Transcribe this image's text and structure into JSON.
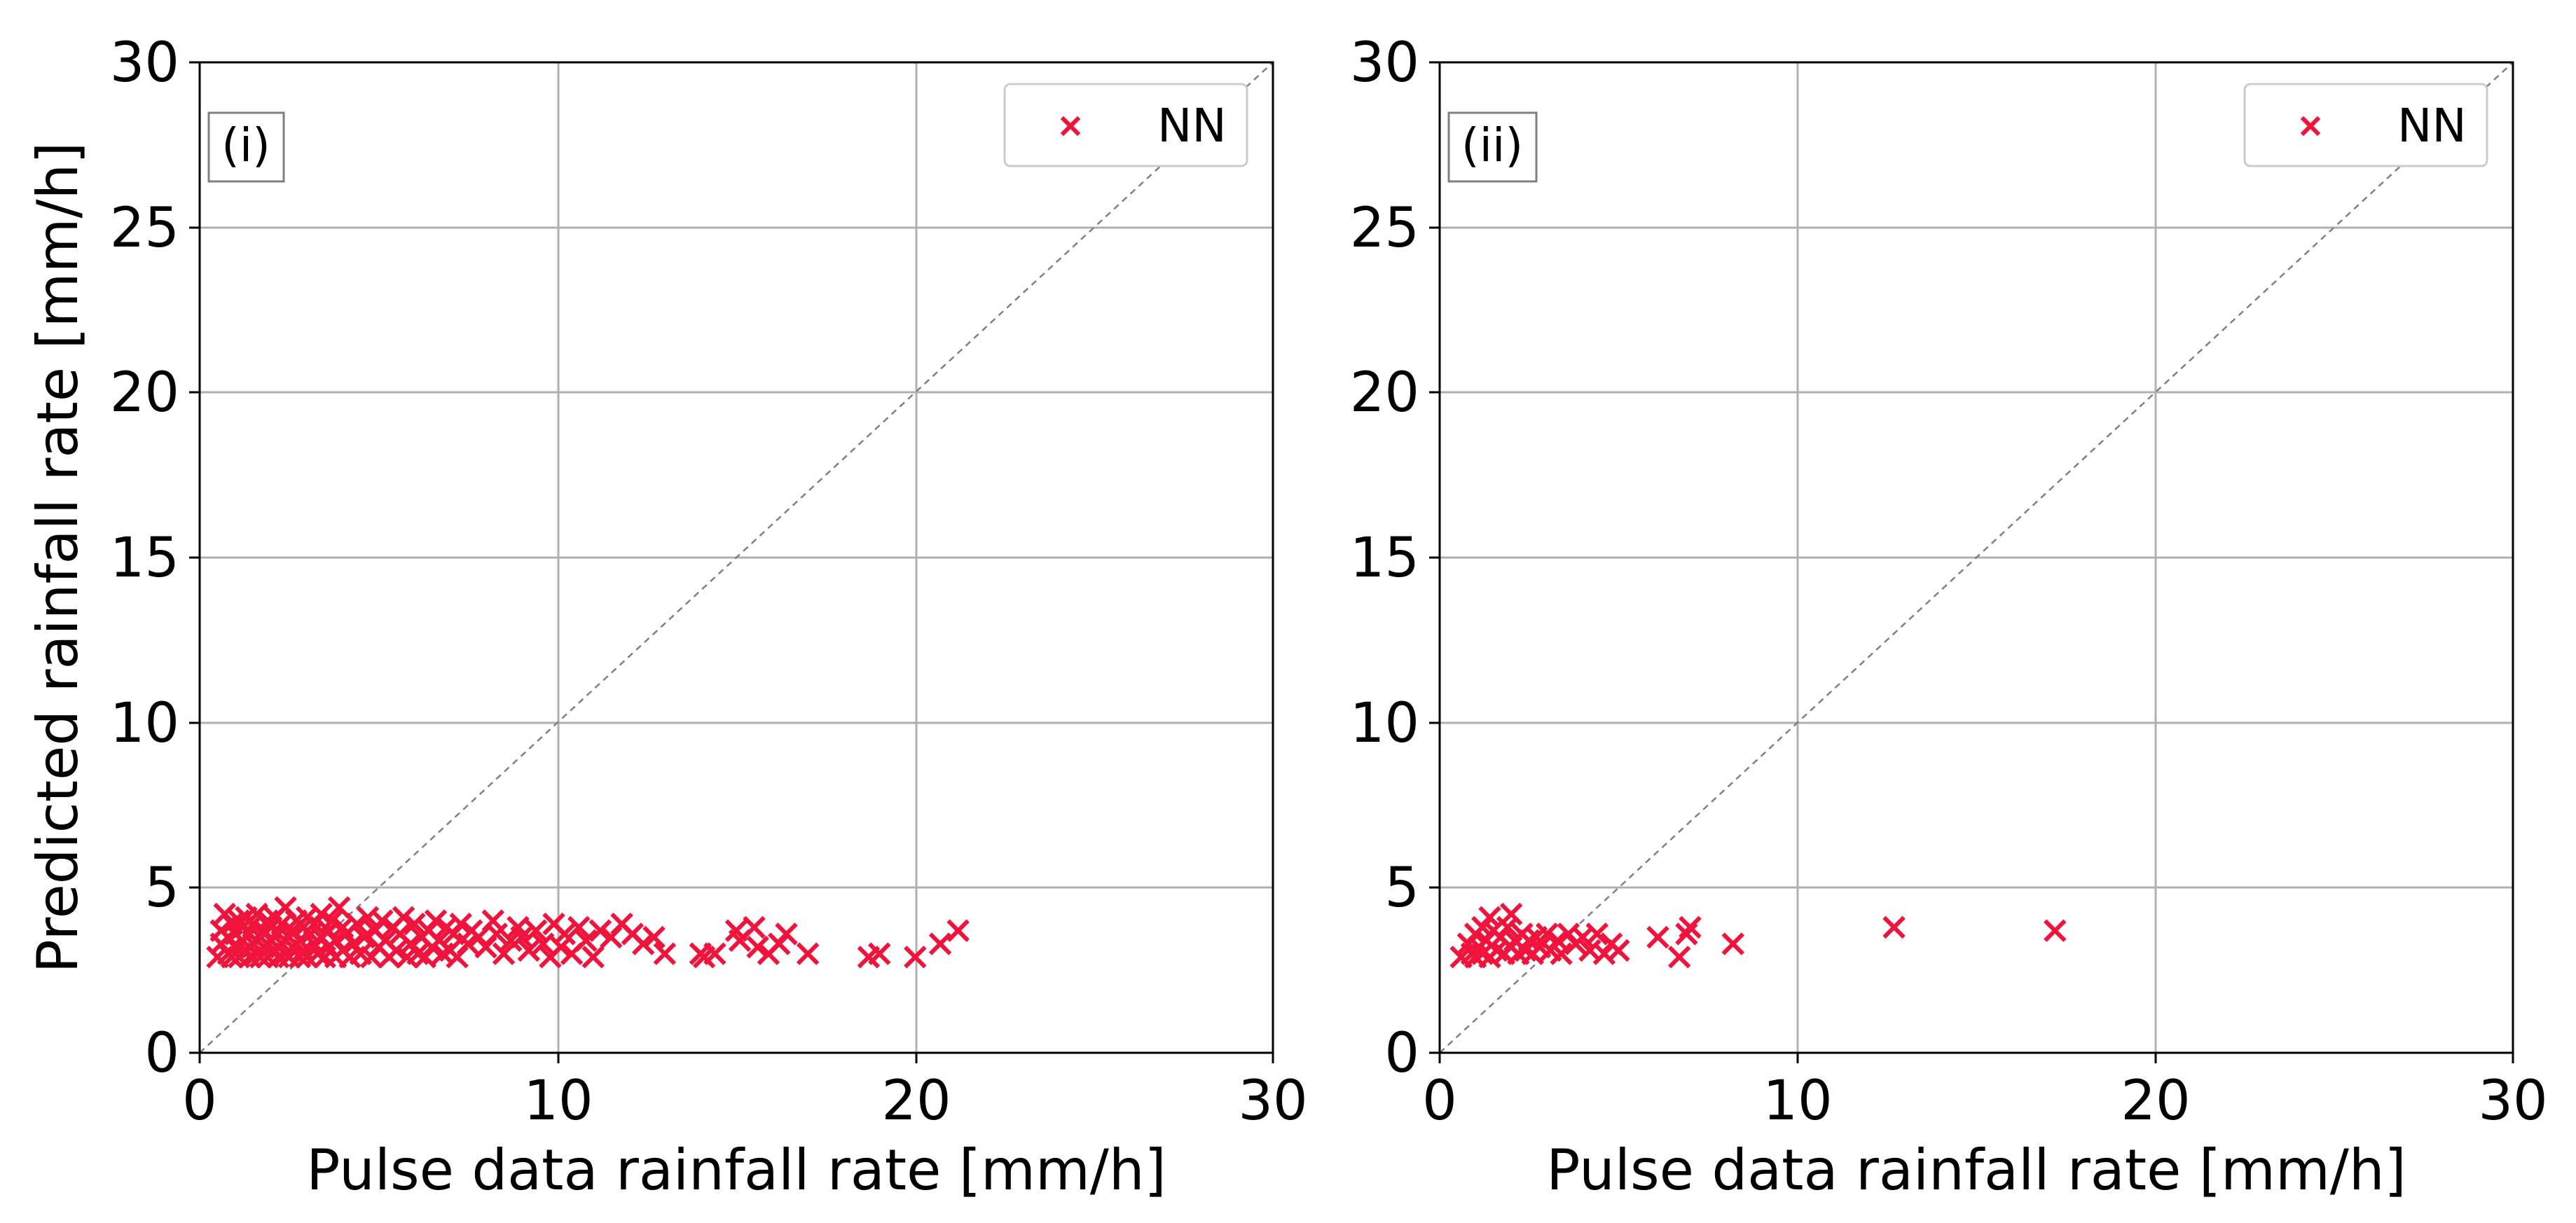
{
  "chart_data": [
    {
      "type": "scatter",
      "panel_label": "(i)",
      "xlabel": "Pulse data rainfall rate [mm/h]",
      "ylabel": "Predicted rainfall rate [mm/h]",
      "xlim": [
        0,
        30
      ],
      "ylim": [
        0,
        30
      ],
      "xticks": [
        "0",
        "10",
        "20",
        "30"
      ],
      "yticks": [
        "0",
        "5",
        "10",
        "15",
        "20",
        "25",
        "30"
      ],
      "grid": true,
      "identity_line": true,
      "legend": {
        "position": "top-right",
        "entries": [
          "NN"
        ]
      },
      "series": [
        {
          "name": "NN",
          "marker": "x",
          "color": "#f0143c",
          "points": [
            [
              0.5,
              2.9
            ],
            [
              0.6,
              3.3
            ],
            [
              0.6,
              3.7
            ],
            [
              0.7,
              4.2
            ],
            [
              0.8,
              3.0
            ],
            [
              0.8,
              3.5
            ],
            [
              0.9,
              2.9
            ],
            [
              0.9,
              3.9
            ],
            [
              1.0,
              3.2
            ],
            [
              1.0,
              3.6
            ],
            [
              1.1,
              4.0
            ],
            [
              1.1,
              2.9
            ],
            [
              1.2,
              3.4
            ],
            [
              1.2,
              3.8
            ],
            [
              1.3,
              3.1
            ],
            [
              1.3,
              4.1
            ],
            [
              1.4,
              2.9
            ],
            [
              1.4,
              3.6
            ],
            [
              1.5,
              3.3
            ],
            [
              1.5,
              3.9
            ],
            [
              1.6,
              3.0
            ],
            [
              1.6,
              4.2
            ],
            [
              1.7,
              3.5
            ],
            [
              1.7,
              2.9
            ],
            [
              1.8,
              3.7
            ],
            [
              1.8,
              3.2
            ],
            [
              1.9,
              4.0
            ],
            [
              1.9,
              2.9
            ],
            [
              2.0,
              3.4
            ],
            [
              2.0,
              3.8
            ],
            [
              2.1,
              3.1
            ],
            [
              2.1,
              4.1
            ],
            [
              2.2,
              2.9
            ],
            [
              2.2,
              3.6
            ],
            [
              2.3,
              3.3
            ],
            [
              2.3,
              3.9
            ],
            [
              2.4,
              3.0
            ],
            [
              2.4,
              4.4
            ],
            [
              2.5,
              3.5
            ],
            [
              2.5,
              2.9
            ],
            [
              2.6,
              3.7
            ],
            [
              2.6,
              3.2
            ],
            [
              2.7,
              4.0
            ],
            [
              2.8,
              2.9
            ],
            [
              2.8,
              3.4
            ],
            [
              2.9,
              3.8
            ],
            [
              2.9,
              3.1
            ],
            [
              3.0,
              4.1
            ],
            [
              3.0,
              2.9
            ],
            [
              3.1,
              3.6
            ],
            [
              3.2,
              3.3
            ],
            [
              3.2,
              3.9
            ],
            [
              3.3,
              3.0
            ],
            [
              3.4,
              4.2
            ],
            [
              3.4,
              3.5
            ],
            [
              3.5,
              2.9
            ],
            [
              3.6,
              3.7
            ],
            [
              3.6,
              3.2
            ],
            [
              3.7,
              4.0
            ],
            [
              3.8,
              3.4
            ],
            [
              3.8,
              2.9
            ],
            [
              3.9,
              4.4
            ],
            [
              4.0,
              3.1
            ],
            [
              4.0,
              3.8
            ],
            [
              4.1,
              3.6
            ],
            [
              4.2,
              2.9
            ],
            [
              4.3,
              3.3
            ],
            [
              4.4,
              3.9
            ],
            [
              4.5,
              3.0
            ],
            [
              4.6,
              3.5
            ],
            [
              4.7,
              4.1
            ],
            [
              4.8,
              2.9
            ],
            [
              4.9,
              3.7
            ],
            [
              5.0,
              3.2
            ],
            [
              5.1,
              4.0
            ],
            [
              5.2,
              3.4
            ],
            [
              5.3,
              2.9
            ],
            [
              5.4,
              3.8
            ],
            [
              5.5,
              3.1
            ],
            [
              5.6,
              3.6
            ],
            [
              5.7,
              4.1
            ],
            [
              5.8,
              2.9
            ],
            [
              5.9,
              3.3
            ],
            [
              6.0,
              3.9
            ],
            [
              6.1,
              3.0
            ],
            [
              6.2,
              3.5
            ],
            [
              6.3,
              2.9
            ],
            [
              6.4,
              3.7
            ],
            [
              6.5,
              3.2
            ],
            [
              6.6,
              4.0
            ],
            [
              6.7,
              3.4
            ],
            [
              6.8,
              3.0
            ],
            [
              6.9,
              3.8
            ],
            [
              7.0,
              3.1
            ],
            [
              7.1,
              3.6
            ],
            [
              7.2,
              2.9
            ],
            [
              7.3,
              3.9
            ],
            [
              7.5,
              3.3
            ],
            [
              7.6,
              3.7
            ],
            [
              7.8,
              3.5
            ],
            [
              8.0,
              3.2
            ],
            [
              8.2,
              4.0
            ],
            [
              8.3,
              3.6
            ],
            [
              8.5,
              3.0
            ],
            [
              8.7,
              3.4
            ],
            [
              8.9,
              3.8
            ],
            [
              9.0,
              3.5
            ],
            [
              9.2,
              3.1
            ],
            [
              9.4,
              3.7
            ],
            [
              9.6,
              3.3
            ],
            [
              9.8,
              2.9
            ],
            [
              9.9,
              3.9
            ],
            [
              10.1,
              3.2
            ],
            [
              10.2,
              3.6
            ],
            [
              10.4,
              3.0
            ],
            [
              10.6,
              3.8
            ],
            [
              10.8,
              3.4
            ],
            [
              11.0,
              2.9
            ],
            [
              11.2,
              3.7
            ],
            [
              11.5,
              3.5
            ],
            [
              11.8,
              3.9
            ],
            [
              12.1,
              3.6
            ],
            [
              12.4,
              3.3
            ],
            [
              12.7,
              3.5
            ],
            [
              13.0,
              3.0
            ],
            [
              14.0,
              3.0
            ],
            [
              14.1,
              2.9
            ],
            [
              14.4,
              3.0
            ],
            [
              15.0,
              3.7
            ],
            [
              15.1,
              3.4
            ],
            [
              15.5,
              3.8
            ],
            [
              15.6,
              3.2
            ],
            [
              15.9,
              3.0
            ],
            [
              16.2,
              3.3
            ],
            [
              16.4,
              3.6
            ],
            [
              17.0,
              3.0
            ],
            [
              18.7,
              2.9
            ],
            [
              19.0,
              3.0
            ],
            [
              20.0,
              2.9
            ],
            [
              20.7,
              3.3
            ],
            [
              21.2,
              3.7
            ]
          ]
        }
      ]
    },
    {
      "type": "scatter",
      "panel_label": "(ii)",
      "xlabel": "Pulse data rainfall rate [mm/h]",
      "ylabel": "",
      "xlim": [
        0,
        30
      ],
      "ylim": [
        0,
        30
      ],
      "xticks": [
        "0",
        "10",
        "20",
        "30"
      ],
      "yticks": [
        "0",
        "5",
        "10",
        "15",
        "20",
        "25",
        "30"
      ],
      "grid": true,
      "identity_line": true,
      "legend": {
        "position": "top-right",
        "entries": [
          "NN"
        ]
      },
      "series": [
        {
          "name": "NN",
          "marker": "x",
          "color": "#f0143c",
          "points": [
            [
              0.6,
              2.9
            ],
            [
              0.8,
              3.3
            ],
            [
              0.9,
              3.0
            ],
            [
              1.0,
              3.6
            ],
            [
              1.0,
              2.9
            ],
            [
              1.1,
              3.2
            ],
            [
              1.2,
              3.8
            ],
            [
              1.2,
              3.0
            ],
            [
              1.3,
              3.4
            ],
            [
              1.4,
              4.1
            ],
            [
              1.4,
              2.9
            ],
            [
              1.5,
              3.7
            ],
            [
              1.6,
              3.1
            ],
            [
              1.7,
              3.5
            ],
            [
              1.8,
              3.0
            ],
            [
              1.9,
              3.8
            ],
            [
              2.0,
              3.2
            ],
            [
              2.0,
              4.2
            ],
            [
              2.1,
              3.4
            ],
            [
              2.2,
              3.0
            ],
            [
              2.3,
              3.6
            ],
            [
              2.4,
              3.1
            ],
            [
              2.5,
              3.4
            ],
            [
              2.6,
              3.0
            ],
            [
              2.7,
              3.5
            ],
            [
              2.8,
              3.2
            ],
            [
              3.0,
              3.6
            ],
            [
              3.1,
              3.1
            ],
            [
              3.3,
              3.4
            ],
            [
              3.4,
              3.0
            ],
            [
              3.6,
              3.6
            ],
            [
              3.8,
              3.3
            ],
            [
              4.0,
              3.5
            ],
            [
              4.2,
              3.1
            ],
            [
              4.4,
              3.6
            ],
            [
              4.6,
              3.0
            ],
            [
              4.8,
              3.3
            ],
            [
              5.0,
              3.1
            ],
            [
              6.1,
              3.5
            ],
            [
              6.7,
              2.9
            ],
            [
              6.9,
              3.6
            ],
            [
              7.0,
              3.8
            ],
            [
              8.2,
              3.3
            ],
            [
              12.7,
              3.8
            ],
            [
              17.2,
              3.7
            ]
          ]
        }
      ]
    }
  ]
}
